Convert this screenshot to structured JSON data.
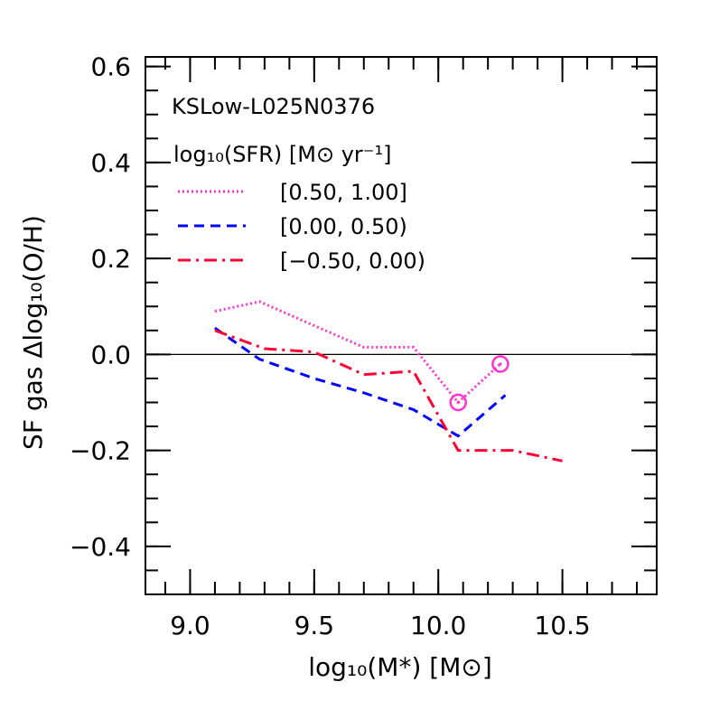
{
  "chart_data": {
    "type": "line",
    "title": "",
    "xlabel": "log₁₀(M*) [M⊙]",
    "ylabel": "SF gas Δlog₁₀(O/H)",
    "xlim": [
      8.82,
      10.88
    ],
    "ylim": [
      -0.5,
      0.62
    ],
    "x_ticks": [
      9.0,
      9.5,
      10.0,
      10.5
    ],
    "x_tick_labels": [
      "9.0",
      "9.5",
      "10.0",
      "10.5"
    ],
    "y_ticks": [
      -0.4,
      -0.2,
      0.0,
      0.2,
      0.4,
      0.6
    ],
    "y_tick_labels": [
      "−0.4",
      "−0.2",
      "0.0",
      "0.2",
      "0.4",
      "0.6"
    ],
    "x_minor_step": 0.1,
    "y_minor_step": 0.05,
    "reference_line_y": 0.0,
    "grid": false,
    "legend_position": "top-left",
    "annotation": "KSLow-L025N0376",
    "legend_title": "log₁₀(SFR) [M⊙ yr⁻¹]",
    "series": [
      {
        "name": "[0.50, 1.00]",
        "color": "#ff33cc",
        "style": "dotted",
        "x": [
          9.1,
          9.28,
          9.5,
          9.7,
          9.9,
          10.08,
          10.25
        ],
        "y": [
          0.09,
          0.11,
          0.06,
          0.015,
          0.015,
          -0.1,
          -0.02
        ],
        "marked_points": [
          {
            "x": 10.08,
            "y": -0.1
          },
          {
            "x": 10.25,
            "y": -0.02
          }
        ]
      },
      {
        "name": "[0.00, 0.50)",
        "color": "#0000ff",
        "style": "dashed",
        "x": [
          9.1,
          9.28,
          9.5,
          9.7,
          9.9,
          10.08,
          10.27
        ],
        "y": [
          0.055,
          -0.01,
          -0.05,
          -0.08,
          -0.115,
          -0.17,
          -0.085
        ]
      },
      {
        "name": "[−0.50, 0.00)",
        "color": "#ff0033",
        "style": "dash-dot",
        "x": [
          9.1,
          9.3,
          9.5,
          9.7,
          9.9,
          10.08,
          10.3,
          10.5
        ],
        "y": [
          0.05,
          0.012,
          0.005,
          -0.042,
          -0.035,
          -0.2,
          -0.2,
          -0.222
        ]
      }
    ]
  }
}
